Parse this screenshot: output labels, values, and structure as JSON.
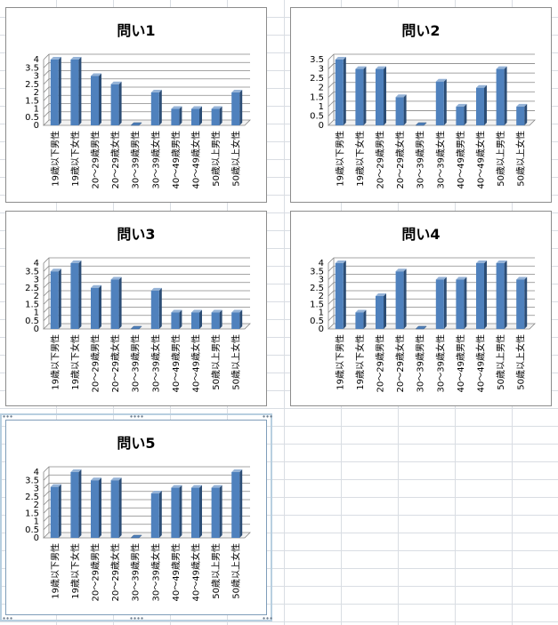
{
  "chart_data": [
    {
      "type": "bar",
      "title": "問い1",
      "categories": [
        "19歳以下男性",
        "19歳以下女性",
        "20～29歳男性",
        "20～29歳女性",
        "30～39歳男性",
        "30～39歳女性",
        "40～49歳男性",
        "40～49歳女性",
        "50歳以上男性",
        "50歳以上女性"
      ],
      "values": [
        4,
        4,
        3,
        2.5,
        0,
        2,
        1,
        1,
        1,
        2
      ],
      "ylim": [
        0,
        4
      ],
      "yticks": [
        "0",
        "0.5",
        "1",
        "1.5",
        "2",
        "2.5",
        "3",
        "3.5",
        "4"
      ],
      "xlabel": "",
      "ylabel": "",
      "grid": true
    },
    {
      "type": "bar",
      "title": "問い2",
      "categories": [
        "19歳以下男性",
        "19歳以下女性",
        "20～29歳男性",
        "20～29歳女性",
        "30～39歳男性",
        "30～39歳女性",
        "40～49歳男性",
        "40～49歳女性",
        "50歳以上男性",
        "50歳以上女性"
      ],
      "values": [
        3.5,
        3,
        3,
        1.5,
        0,
        2.33,
        1,
        2,
        3,
        1
      ],
      "ylim": [
        0,
        3.5
      ],
      "yticks": [
        "0",
        "0.5",
        "1",
        "1.5",
        "2",
        "2.5",
        "3",
        "3.5"
      ],
      "xlabel": "",
      "ylabel": "",
      "grid": true
    },
    {
      "type": "bar",
      "title": "問い3",
      "categories": [
        "19歳以下男性",
        "19歳以下女性",
        "20～29歳男性",
        "20～29歳女性",
        "30～39歳男性",
        "30～39歳女性",
        "40～49歳男性",
        "40～49歳女性",
        "50歳以上男性",
        "50歳以上女性"
      ],
      "values": [
        3.5,
        4,
        2.5,
        3,
        0,
        2.33,
        1,
        1,
        1,
        1
      ],
      "ylim": [
        0,
        4
      ],
      "yticks": [
        "0",
        "0.5",
        "1",
        "1.5",
        "2",
        "2.5",
        "3",
        "3.5",
        "4"
      ],
      "xlabel": "",
      "ylabel": "",
      "grid": true
    },
    {
      "type": "bar",
      "title": "問い4",
      "categories": [
        "19歳以下男性",
        "19歳以下女性",
        "20～29歳男性",
        "20～29歳女性",
        "30～39歳男性",
        "30～39歳女性",
        "40～49歳男性",
        "40～49歳女性",
        "50歳以上男性",
        "50歳以上女性"
      ],
      "values": [
        4,
        1,
        2,
        3.5,
        0,
        3,
        3,
        4,
        4,
        3
      ],
      "ylim": [
        0,
        4
      ],
      "yticks": [
        "0",
        "0.5",
        "1",
        "1.5",
        "2",
        "2.5",
        "3",
        "3.5",
        "4"
      ],
      "xlabel": "",
      "ylabel": "",
      "grid": true
    },
    {
      "type": "bar",
      "title": "問い5",
      "categories": [
        "19歳以下男性",
        "19歳以下女性",
        "20～29歳男性",
        "20～29歳女性",
        "30～39歳男性",
        "30～39歳女性",
        "40～49歳男性",
        "40～49歳女性",
        "50歳以上男性",
        "50歳以上女性"
      ],
      "values": [
        3.1,
        4,
        3.5,
        3.5,
        0,
        2.7,
        3.05,
        3.05,
        3.05,
        4
      ],
      "ylim": [
        0,
        4
      ],
      "yticks": [
        "0",
        "0.5",
        "1",
        "1.5",
        "2",
        "2.5",
        "3",
        "3.5",
        "4"
      ],
      "xlabel": "",
      "ylabel": "",
      "grid": true
    }
  ],
  "colors": {
    "bar_front": "#4f81bd",
    "bar_side": "#2c4d75",
    "bar_top": "#95b3d7",
    "gridline": "#868686",
    "selection_border": "#b8cfe0"
  },
  "selected_chart_index": 4
}
